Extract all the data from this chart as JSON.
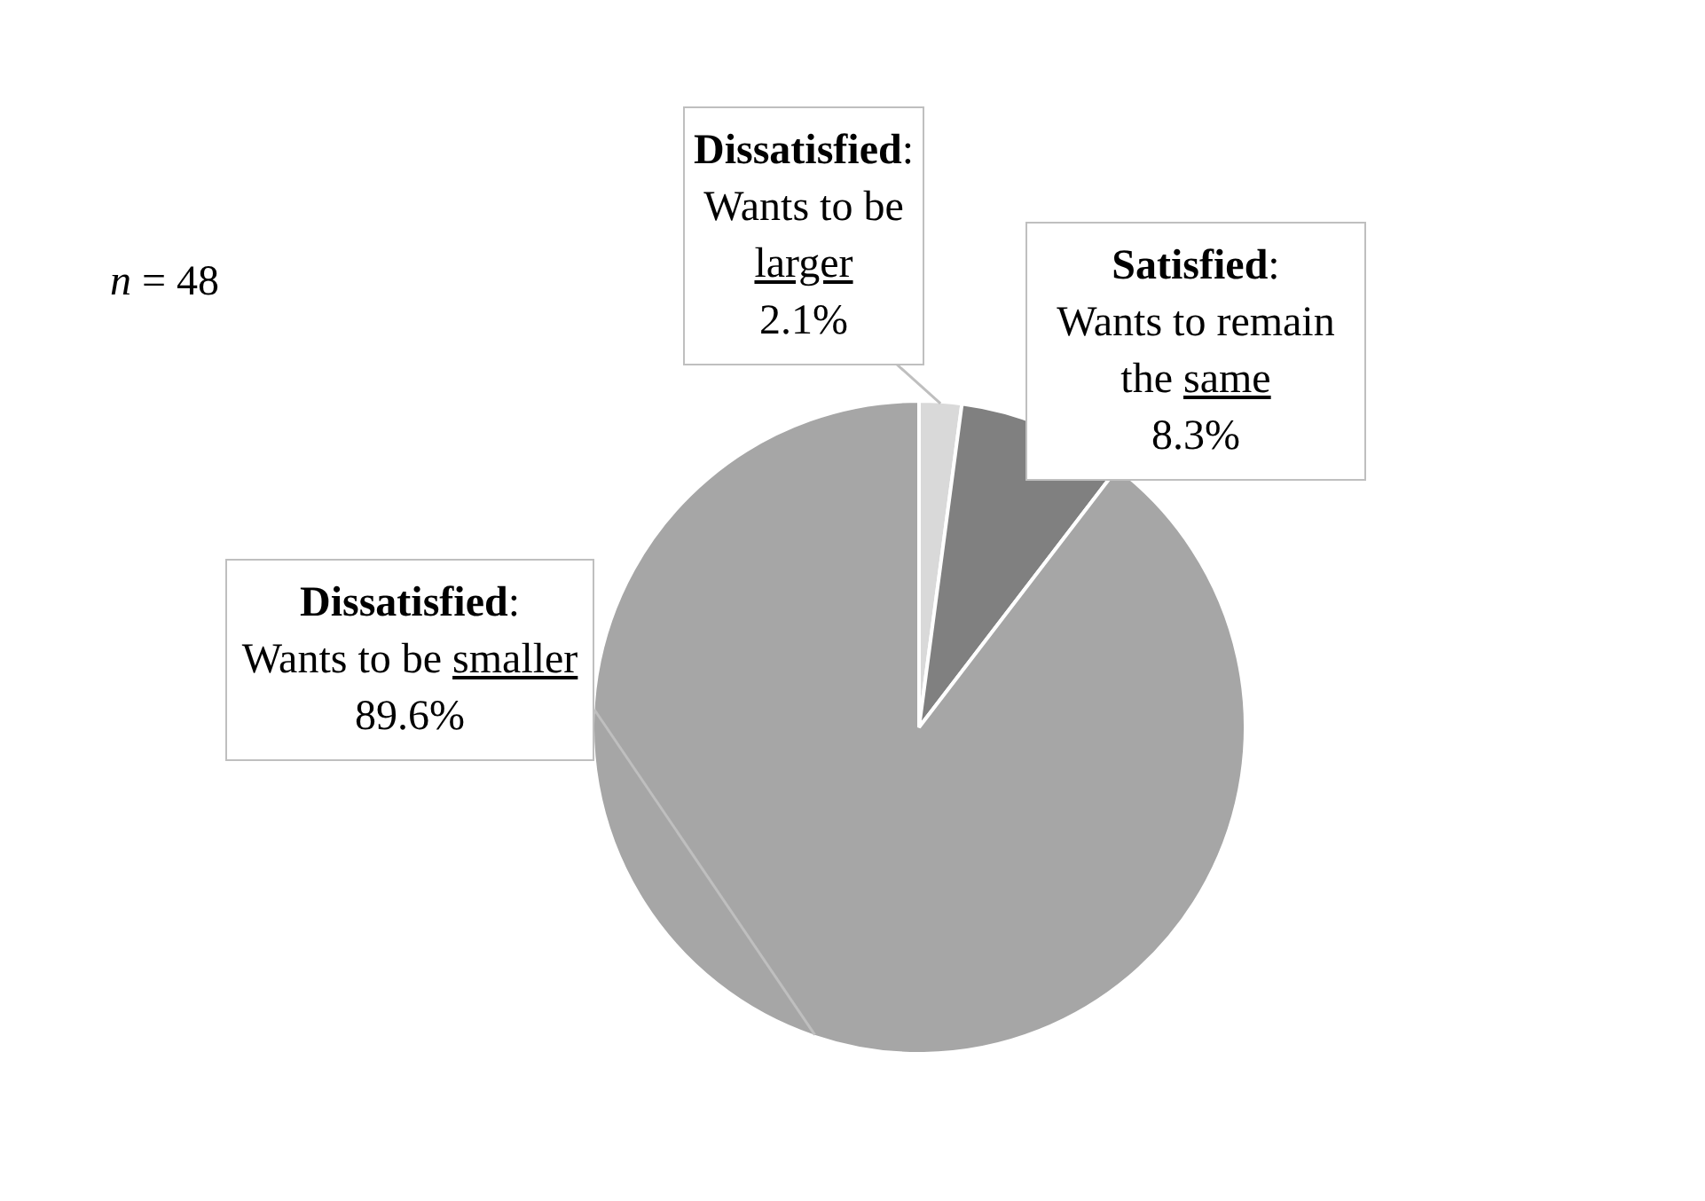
{
  "chart_data": {
    "type": "pie",
    "categories": [
      "Dissatisfied: Wants to be larger",
      "Satisfied: Wants to remain the same",
      "Dissatisfied: Wants to be smaller"
    ],
    "values": [
      2.1,
      8.3,
      89.6
    ],
    "value_labels": [
      "2.1%",
      "8.3%",
      "89.6%"
    ],
    "colors": [
      "#d9d9d9",
      "#808080",
      "#a6a6a6"
    ],
    "annotations": [
      "n = 48"
    ],
    "legend": false
  }
}
